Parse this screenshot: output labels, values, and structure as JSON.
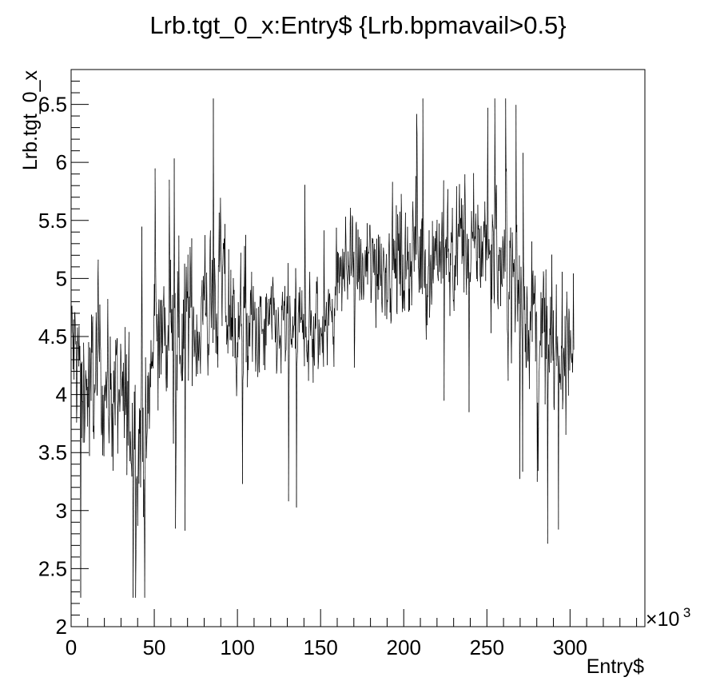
{
  "chart_data": {
    "type": "scatter",
    "title": "Lrb.tgt_0_x:Entry$ {Lrb.bpmavail>0.5}",
    "xlabel": "Entry$",
    "ylabel": "Lrb.tgt_0_x",
    "x_multiplier": "×10",
    "x_multiplier_exp": "3",
    "xlim": [
      0,
      345
    ],
    "ylim": [
      2,
      6.8
    ],
    "x_ticks": [
      0,
      50,
      100,
      150,
      200,
      250,
      300
    ],
    "x_tick_labels": [
      "0",
      "50",
      "100",
      "150",
      "200",
      "250",
      "300"
    ],
    "y_ticks": [
      2,
      2.5,
      3,
      3.5,
      4,
      4.5,
      5,
      5.5,
      6,
      6.5
    ],
    "y_tick_labels": [
      "2",
      "2.5",
      "3",
      "3.5",
      "4",
      "4.5",
      "5",
      "5.5",
      "6",
      "6.5"
    ],
    "grid": false,
    "legend": "none",
    "color": "#000000",
    "series_envelope": {
      "x": [
        0,
        5,
        10,
        15,
        20,
        25,
        30,
        35,
        40,
        45,
        50,
        55,
        60,
        65,
        70,
        75,
        80,
        85,
        90,
        95,
        100,
        105,
        110,
        115,
        120,
        125,
        130,
        135,
        140,
        145,
        150,
        155,
        160,
        165,
        170,
        175,
        180,
        185,
        190,
        195,
        200,
        205,
        210,
        215,
        220,
        225,
        230,
        235,
        240,
        245,
        250,
        255,
        260,
        265,
        270,
        275,
        280,
        285,
        290,
        295,
        300,
        302
      ],
      "center": [
        4.4,
        4.2,
        4.0,
        4.3,
        4.1,
        4.0,
        3.9,
        3.8,
        3.7,
        3.6,
        4.6,
        4.5,
        4.4,
        4.6,
        4.7,
        4.6,
        4.7,
        4.8,
        4.9,
        4.7,
        4.6,
        4.6,
        4.5,
        4.5,
        4.6,
        4.5,
        4.6,
        4.5,
        4.6,
        4.5,
        4.5,
        4.6,
        5.0,
        5.1,
        5.1,
        5.0,
        5.1,
        5.2,
        5.1,
        5.2,
        5.1,
        5.3,
        5.2,
        5.1,
        5.3,
        5.2,
        5.2,
        5.4,
        5.2,
        5.3,
        5.3,
        5.2,
        5.1,
        5.0,
        4.8,
        4.7,
        4.6,
        4.5,
        4.3,
        4.4,
        4.6,
        4.7
      ],
      "spread": [
        0.8,
        0.9,
        0.8,
        0.8,
        0.7,
        0.7,
        0.8,
        0.8,
        0.7,
        0.8,
        0.7,
        0.7,
        0.8,
        0.8,
        0.8,
        0.7,
        0.8,
        0.7,
        0.8,
        0.8,
        0.7,
        0.7,
        0.6,
        0.5,
        0.5,
        0.5,
        0.6,
        0.6,
        0.6,
        0.6,
        0.5,
        0.5,
        0.5,
        0.5,
        0.5,
        0.5,
        0.6,
        0.6,
        0.6,
        0.6,
        0.6,
        0.6,
        0.6,
        0.6,
        0.6,
        0.6,
        0.6,
        0.6,
        0.6,
        0.6,
        0.7,
        0.7,
        0.7,
        0.7,
        0.7,
        0.7,
        0.7,
        0.7,
        0.7,
        0.7,
        0.8,
        0.8
      ],
      "n_points_per_unit": 4
    }
  }
}
